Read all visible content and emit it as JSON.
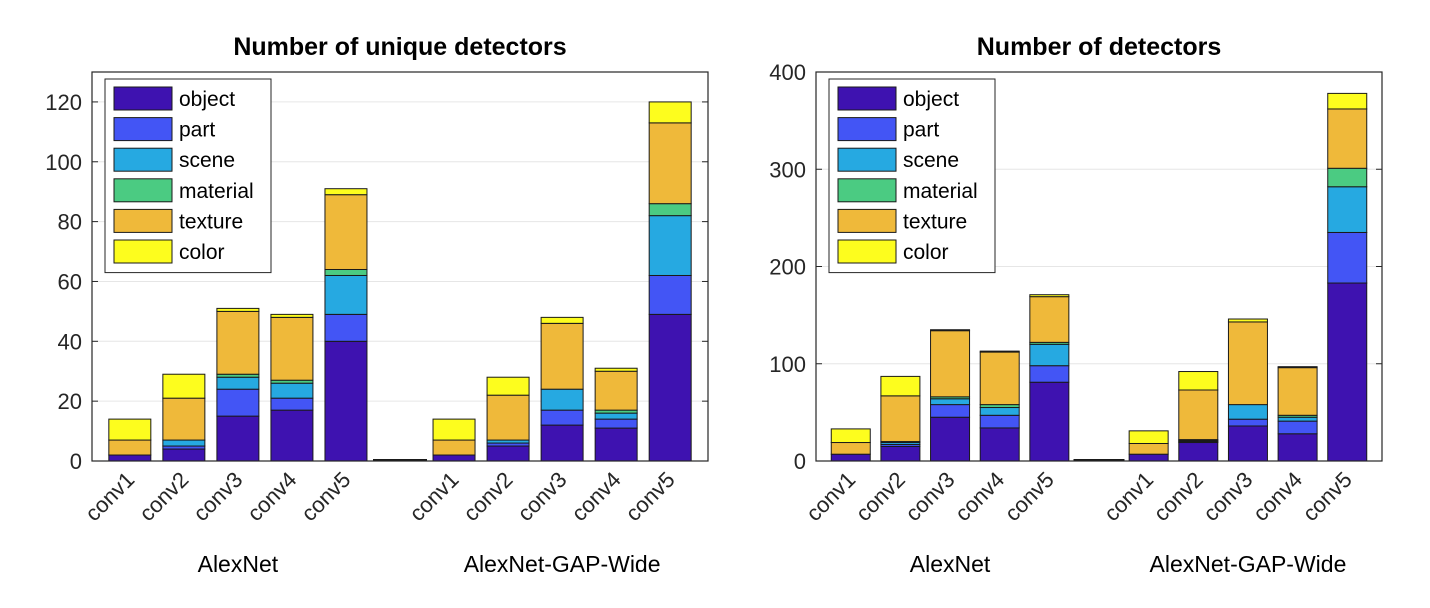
{
  "chart_data": [
    {
      "type": "bar",
      "stacked": true,
      "title": "Number of unique detectors",
      "xlabel": "",
      "ylabel": "",
      "ylim": [
        0,
        130
      ],
      "yticks": [
        0,
        20,
        40,
        60,
        80,
        100,
        120
      ],
      "grid": true,
      "legend_position": "top-left",
      "groups": [
        {
          "label": "AlexNet",
          "categories": [
            "conv1",
            "conv2",
            "conv3",
            "conv4",
            "conv5"
          ]
        },
        {
          "label": "AlexNet-GAP-Wide",
          "categories": [
            "conv1",
            "conv2",
            "conv3",
            "conv4",
            "conv5"
          ]
        }
      ],
      "series": [
        {
          "name": "object",
          "color": "#3e12b0",
          "values": [
            2,
            4,
            15,
            17,
            40,
            2,
            5,
            12,
            11,
            49
          ]
        },
        {
          "name": "part",
          "color": "#4355f5",
          "values": [
            0,
            1,
            9,
            4,
            9,
            0,
            1,
            5,
            3,
            13
          ]
        },
        {
          "name": "scene",
          "color": "#26a9e1",
          "values": [
            0,
            2,
            4,
            5,
            13,
            0,
            1,
            7,
            2,
            20
          ]
        },
        {
          "name": "material",
          "color": "#4bcb82",
          "values": [
            0,
            0,
            1,
            1,
            2,
            0,
            0,
            0,
            1,
            4
          ]
        },
        {
          "name": "texture",
          "color": "#efb93a",
          "values": [
            5,
            14,
            21,
            21,
            25,
            5,
            15,
            22,
            13,
            27
          ]
        },
        {
          "name": "color",
          "color": "#fdfd1e",
          "values": [
            7,
            8,
            1,
            1,
            2,
            7,
            6,
            2,
            1,
            7
          ]
        }
      ]
    },
    {
      "type": "bar",
      "stacked": true,
      "title": "Number of detectors",
      "xlabel": "",
      "ylabel": "",
      "ylim": [
        0,
        400
      ],
      "yticks": [
        0,
        100,
        200,
        300,
        400
      ],
      "grid": true,
      "legend_position": "top-left",
      "groups": [
        {
          "label": "AlexNet",
          "categories": [
            "conv1",
            "conv2",
            "conv3",
            "conv4",
            "conv5"
          ]
        },
        {
          "label": "AlexNet-GAP-Wide",
          "categories": [
            "conv1",
            "conv2",
            "conv3",
            "conv4",
            "conv5"
          ]
        }
      ],
      "series": [
        {
          "name": "object",
          "color": "#3e12b0",
          "values": [
            7,
            15,
            45,
            34,
            81,
            7,
            19,
            36,
            28,
            183
          ]
        },
        {
          "name": "part",
          "color": "#4355f5",
          "values": [
            0,
            2,
            13,
            13,
            17,
            0,
            1,
            7,
            13,
            52
          ]
        },
        {
          "name": "scene",
          "color": "#26a9e1",
          "values": [
            0,
            2,
            6,
            8,
            22,
            0,
            1,
            15,
            4,
            47
          ]
        },
        {
          "name": "material",
          "color": "#4bcb82",
          "values": [
            0,
            1,
            2,
            3,
            2,
            0,
            1,
            0,
            2,
            19
          ]
        },
        {
          "name": "texture",
          "color": "#efb93a",
          "values": [
            12,
            47,
            68,
            54,
            47,
            11,
            51,
            85,
            49,
            61
          ]
        },
        {
          "name": "color",
          "color": "#fdfd1e",
          "values": [
            14,
            20,
            1,
            1,
            2,
            13,
            19,
            3,
            1,
            16
          ]
        }
      ]
    }
  ]
}
